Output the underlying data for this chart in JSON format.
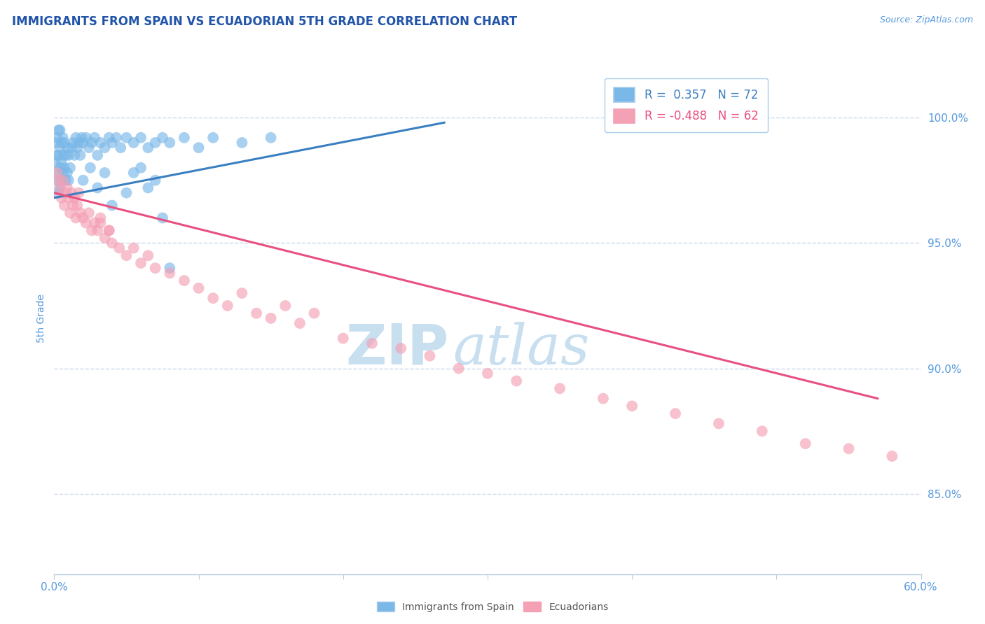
{
  "title": "IMMIGRANTS FROM SPAIN VS ECUADORIAN 5TH GRADE CORRELATION CHART",
  "source_text": "Source: ZipAtlas.com",
  "ylabel": "5th Grade",
  "watermark_zip": "ZIP",
  "watermark_atlas": "atlas",
  "xlim": [
    0.0,
    0.6
  ],
  "ylim": [
    0.818,
    1.022
  ],
  "xticks": [
    0.0,
    0.1,
    0.2,
    0.3,
    0.4,
    0.5,
    0.6
  ],
  "xticklabels": [
    "0.0%",
    "",
    "",
    "",
    "",
    "",
    "60.0%"
  ],
  "yticks": [
    0.85,
    0.9,
    0.95,
    1.0
  ],
  "yticklabels": [
    "85.0%",
    "90.0%",
    "95.0%",
    "100.0%"
  ],
  "legend_blue_label": "Immigrants from Spain",
  "legend_pink_label": "Ecuadorians",
  "R_blue": 0.357,
  "N_blue": 72,
  "R_pink": -0.488,
  "N_pink": 62,
  "blue_color": "#7ab8e8",
  "pink_color": "#f4a0b5",
  "blue_line_color": "#3a7fc1",
  "pink_line_color": "#e85080",
  "title_color": "#2255aa",
  "axis_label_color": "#5599dd",
  "grid_color": "#c8d8ee",
  "watermark_color": "#c8dff0",
  "blue_line_x": [
    0.0,
    0.27
  ],
  "blue_line_y": [
    0.968,
    0.998
  ],
  "pink_line_x": [
    0.0,
    0.57
  ],
  "pink_line_y": [
    0.97,
    0.888
  ],
  "blue_dots_x": [
    0.001,
    0.001,
    0.002,
    0.002,
    0.002,
    0.003,
    0.003,
    0.003,
    0.003,
    0.004,
    0.004,
    0.004,
    0.004,
    0.005,
    0.005,
    0.005,
    0.006,
    0.006,
    0.006,
    0.007,
    0.007,
    0.008,
    0.008,
    0.009,
    0.009,
    0.01,
    0.01,
    0.011,
    0.012,
    0.013,
    0.014,
    0.015,
    0.016,
    0.017,
    0.018,
    0.019,
    0.02,
    0.022,
    0.024,
    0.026,
    0.028,
    0.03,
    0.032,
    0.035,
    0.038,
    0.04,
    0.043,
    0.046,
    0.05,
    0.055,
    0.06,
    0.065,
    0.07,
    0.075,
    0.08,
    0.09,
    0.1,
    0.11,
    0.13,
    0.15,
    0.02,
    0.025,
    0.03,
    0.035,
    0.04,
    0.05,
    0.055,
    0.06,
    0.065,
    0.07,
    0.075,
    0.08
  ],
  "blue_dots_y": [
    0.99,
    0.982,
    0.985,
    0.992,
    0.975,
    0.985,
    0.978,
    0.995,
    0.97,
    0.988,
    0.98,
    0.972,
    0.995,
    0.982,
    0.975,
    0.99,
    0.985,
    0.978,
    0.992,
    0.98,
    0.99,
    0.975,
    0.985,
    0.978,
    0.988,
    0.975,
    0.985,
    0.98,
    0.988,
    0.99,
    0.985,
    0.992,
    0.988,
    0.99,
    0.985,
    0.992,
    0.99,
    0.992,
    0.988,
    0.99,
    0.992,
    0.985,
    0.99,
    0.988,
    0.992,
    0.99,
    0.992,
    0.988,
    0.992,
    0.99,
    0.992,
    0.988,
    0.99,
    0.992,
    0.99,
    0.992,
    0.988,
    0.992,
    0.99,
    0.992,
    0.975,
    0.98,
    0.972,
    0.978,
    0.965,
    0.97,
    0.978,
    0.98,
    0.972,
    0.975,
    0.96,
    0.94
  ],
  "pink_dots_x": [
    0.002,
    0.003,
    0.004,
    0.005,
    0.006,
    0.007,
    0.008,
    0.009,
    0.01,
    0.011,
    0.012,
    0.013,
    0.014,
    0.015,
    0.016,
    0.017,
    0.018,
    0.02,
    0.022,
    0.024,
    0.026,
    0.028,
    0.03,
    0.032,
    0.035,
    0.038,
    0.04,
    0.045,
    0.05,
    0.055,
    0.06,
    0.065,
    0.07,
    0.08,
    0.09,
    0.1,
    0.11,
    0.12,
    0.13,
    0.14,
    0.15,
    0.16,
    0.17,
    0.18,
    0.2,
    0.22,
    0.24,
    0.26,
    0.28,
    0.3,
    0.32,
    0.35,
    0.38,
    0.4,
    0.43,
    0.46,
    0.49,
    0.52,
    0.55,
    0.58,
    0.032,
    0.038
  ],
  "pink_dots_y": [
    0.978,
    0.975,
    0.972,
    0.968,
    0.975,
    0.965,
    0.97,
    0.972,
    0.968,
    0.962,
    0.97,
    0.965,
    0.968,
    0.96,
    0.965,
    0.97,
    0.962,
    0.96,
    0.958,
    0.962,
    0.955,
    0.958,
    0.955,
    0.958,
    0.952,
    0.955,
    0.95,
    0.948,
    0.945,
    0.948,
    0.942,
    0.945,
    0.94,
    0.938,
    0.935,
    0.932,
    0.928,
    0.925,
    0.93,
    0.922,
    0.92,
    0.925,
    0.918,
    0.922,
    0.912,
    0.91,
    0.908,
    0.905,
    0.9,
    0.898,
    0.895,
    0.892,
    0.888,
    0.885,
    0.882,
    0.878,
    0.875,
    0.87,
    0.868,
    0.865,
    0.96,
    0.955
  ]
}
